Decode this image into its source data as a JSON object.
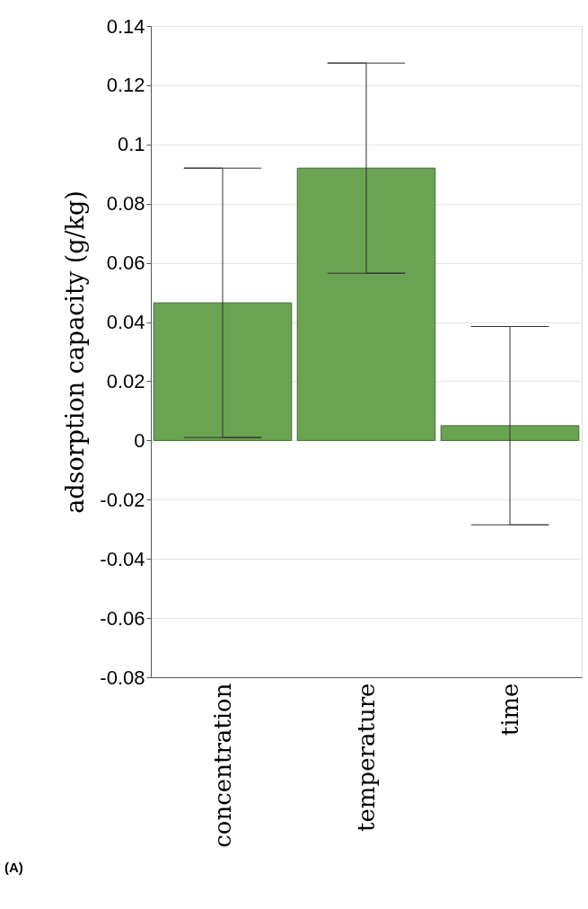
{
  "chart_data": {
    "type": "bar",
    "categories": [
      "concentration",
      "temperature",
      "time"
    ],
    "values": [
      0.0465,
      0.092,
      0.005
    ],
    "errors": [
      0.0455,
      0.0355,
      0.0335
    ],
    "color": "#6aa352",
    "ylabel": "adsorption capacity (g/kg)",
    "ylim": [
      -0.08,
      0.14
    ],
    "yticks": [
      -0.08,
      -0.06,
      -0.04,
      -0.02,
      0,
      0.02,
      0.04,
      0.06,
      0.08,
      0.1,
      0.12,
      0.14
    ],
    "grid": "y",
    "annotations": [
      "(A)"
    ]
  }
}
